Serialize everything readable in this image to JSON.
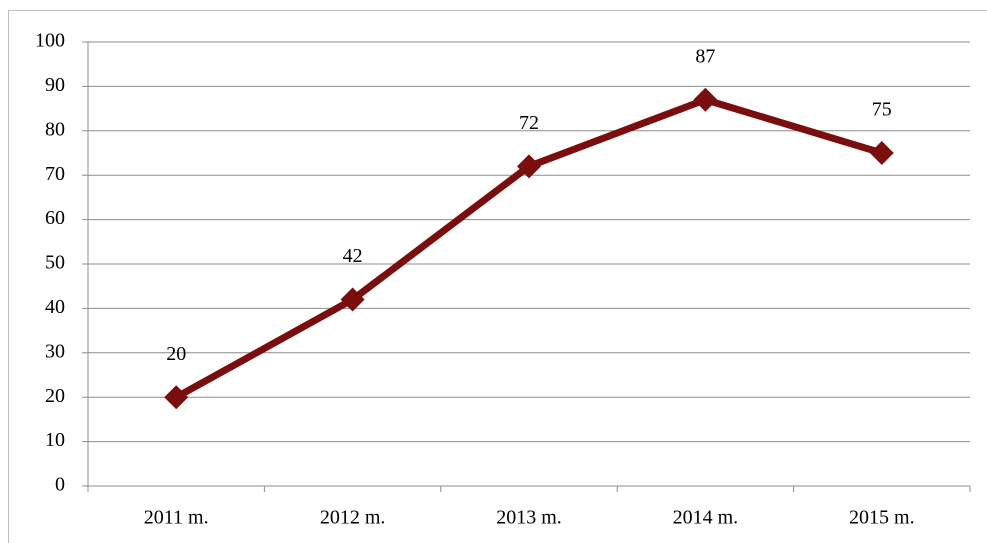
{
  "chart_data": {
    "type": "line",
    "categories": [
      "2011 m.",
      "2012 m.",
      "2013 m.",
      "2014 m.",
      "2015 m."
    ],
    "series": [
      {
        "color": "#7a0e0e",
        "values": [
          20,
          42,
          72,
          87,
          75
        ]
      }
    ],
    "ylim": [
      0,
      100
    ],
    "yticks": [
      0,
      10,
      20,
      30,
      40,
      50,
      60,
      70,
      80,
      90,
      100
    ],
    "grid": true,
    "data_labels": true
  }
}
